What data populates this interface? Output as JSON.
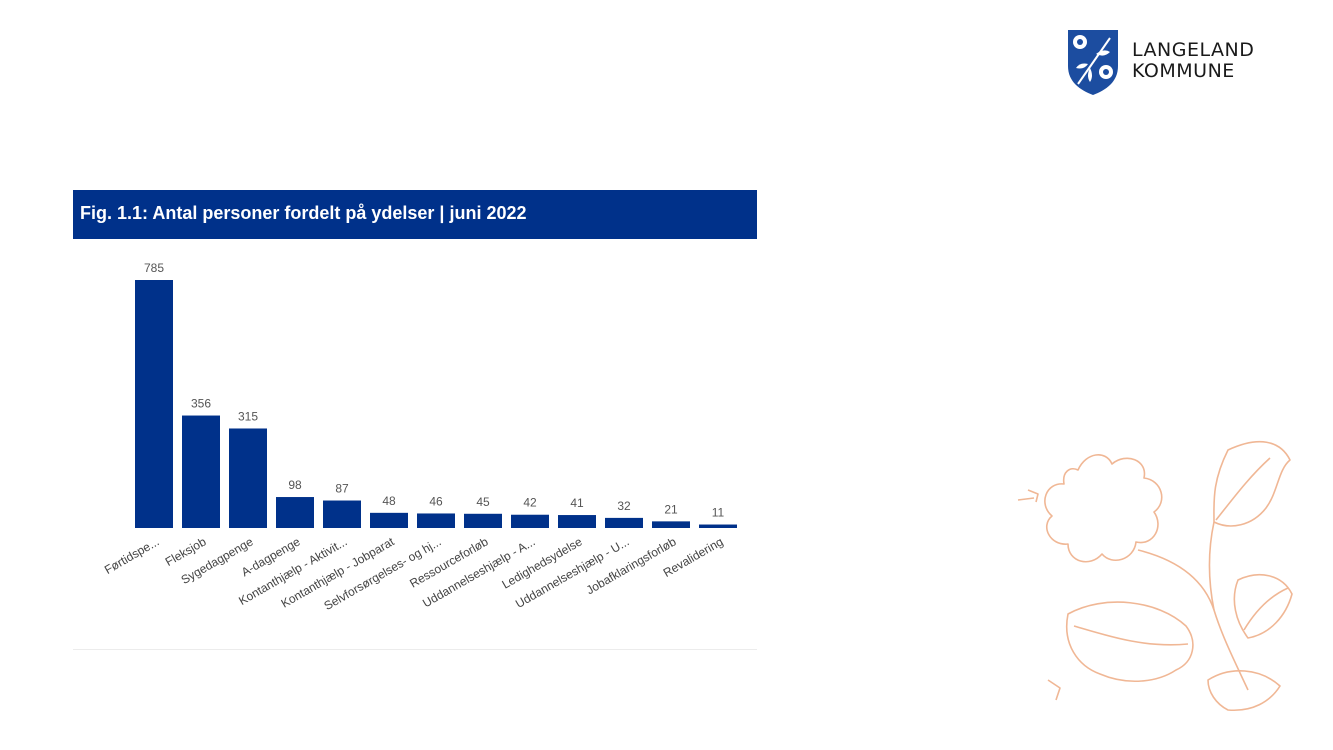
{
  "logo": {
    "line1": "LANGELAND",
    "line2": "KOMMUNE",
    "shield_icon": "shield-with-roses-icon",
    "shield_color": "#1c4da0"
  },
  "figure": {
    "title": "Fig. 1.1: Antal personer fordelt på ydelser | juni 2022",
    "title_bg": "#00318a",
    "title_color": "#ffffff"
  },
  "chart_data": {
    "type": "bar",
    "title": "Fig. 1.1: Antal personer fordelt på ydelser | juni 2022",
    "bar_color": "#00318a",
    "categories": [
      "Førtidspe...",
      "Fleksjob",
      "Sygedagpenge",
      "A-dagpenge",
      "Kontanthjælp - Aktivit...",
      "Kontanthjælp - Jobparat",
      "Selvforsørgelses- og hj...",
      "Ressourceforløb",
      "Uddannelseshjælp - A...",
      "Ledighedsydelse",
      "Uddannelseshjælp - U...",
      "Jobafklaringsforløb",
      "Revalidering"
    ],
    "values": [
      785,
      356,
      315,
      98,
      87,
      48,
      46,
      45,
      42,
      41,
      32,
      21,
      11
    ],
    "ylim": [
      0,
      785
    ],
    "grid": false,
    "data_labels": true
  },
  "decoration": {
    "icon": "rose-outline-icon",
    "color": "#f0b795"
  }
}
